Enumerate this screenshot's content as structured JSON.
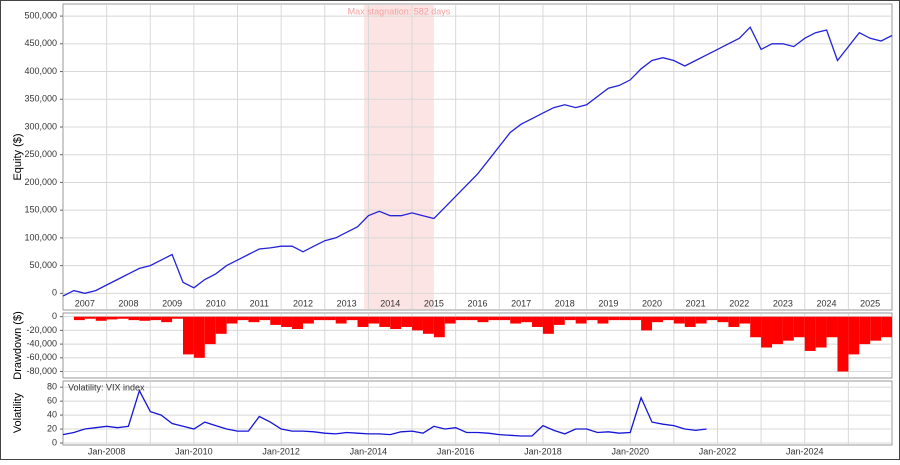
{
  "chart_data": [
    {
      "type": "line",
      "y_label": "Equity ($)",
      "annotation": "Max stagnation: 582 days",
      "shade": [
        2013.9,
        2015.5
      ],
      "shade_color": "#fde4e4",
      "annotation_color": "#f2a0a0",
      "grid": true,
      "xlim": [
        2007,
        2026
      ],
      "ylim": [
        -12000,
        520000
      ],
      "xticks": [
        {
          "value": 2007,
          "label": "2007"
        },
        {
          "value": 2008,
          "label": "2008"
        },
        {
          "value": 2009,
          "label": "2009"
        },
        {
          "value": 2010,
          "label": "2010"
        },
        {
          "value": 2011,
          "label": "2011"
        },
        {
          "value": 2012,
          "label": "2012"
        },
        {
          "value": 2013,
          "label": "2013"
        },
        {
          "value": 2014,
          "label": "2014"
        },
        {
          "value": 2015,
          "label": "2015"
        },
        {
          "value": 2016,
          "label": "2016"
        },
        {
          "value": 2017,
          "label": "2017"
        },
        {
          "value": 2018,
          "label": "2018"
        },
        {
          "value": 2019,
          "label": "2019"
        },
        {
          "value": 2020,
          "label": "2020"
        },
        {
          "value": 2021,
          "label": "2021"
        },
        {
          "value": 2022,
          "label": "2022"
        },
        {
          "value": 2023,
          "label": "2023"
        },
        {
          "value": 2024,
          "label": "2024"
        },
        {
          "value": 2025,
          "label": "2025"
        }
      ],
      "yticks": [
        0,
        {
          "value": 50000,
          "label": "50,000"
        },
        {
          "value": 100000,
          "label": "100,000"
        },
        {
          "value": 150000,
          "label": "150,000"
        },
        {
          "value": 200000,
          "label": "200,000"
        },
        {
          "value": 250000,
          "label": "250,000"
        },
        {
          "value": 300000,
          "label": "300,000"
        },
        {
          "value": 350000,
          "label": "350,000"
        },
        {
          "value": 400000,
          "label": "400,000"
        },
        {
          "value": 450000,
          "label": "450,000"
        },
        {
          "value": 500000,
          "label": "500,000"
        }
      ],
      "x": [
        2007,
        2007.25,
        2007.5,
        2007.75,
        2008,
        2008.25,
        2008.5,
        2008.75,
        2009,
        2009.25,
        2009.5,
        2009.75,
        2010,
        2010.25,
        2010.5,
        2010.75,
        2011,
        2011.25,
        2011.5,
        2011.75,
        2012,
        2012.25,
        2012.5,
        2012.75,
        2013,
        2013.25,
        2013.5,
        2013.75,
        2014,
        2014.25,
        2014.5,
        2014.75,
        2015,
        2015.25,
        2015.5,
        2015.75,
        2016,
        2016.25,
        2016.5,
        2016.75,
        2017,
        2017.25,
        2017.5,
        2017.75,
        2018,
        2018.25,
        2018.5,
        2018.75,
        2019,
        2019.25,
        2019.5,
        2019.75,
        2020,
        2020.25,
        2020.5,
        2020.75,
        2021,
        2021.25,
        2021.5,
        2021.75,
        2022,
        2022.25,
        2022.5,
        2022.75,
        2023,
        2023.25,
        2023.5,
        2023.75,
        2024,
        2024.25,
        2024.5,
        2024.75,
        2025,
        2025.25,
        2025.5,
        2025.75,
        2026
      ],
      "series": [
        {
          "color": "#2323d8",
          "values": [
            -5000,
            5000,
            0,
            5000,
            15000,
            25000,
            35000,
            45000,
            50000,
            60000,
            70000,
            20000,
            10000,
            25000,
            35000,
            50000,
            60000,
            70000,
            80000,
            82000,
            85000,
            85000,
            75000,
            85000,
            95000,
            100000,
            110000,
            120000,
            140000,
            148000,
            140000,
            140000,
            145000,
            140000,
            135000,
            155000,
            175000,
            195000,
            215000,
            240000,
            265000,
            290000,
            305000,
            315000,
            325000,
            335000,
            340000,
            335000,
            340000,
            355000,
            370000,
            375000,
            385000,
            405000,
            420000,
            425000,
            420000,
            410000,
            420000,
            430000,
            440000,
            450000,
            460000,
            480000,
            440000,
            450000,
            450000,
            445000,
            460000,
            470000,
            475000,
            420000,
            445000,
            470000,
            460000,
            455000,
            465000
          ]
        }
      ]
    },
    {
      "type": "bar",
      "y_label": "Drawdown ($)",
      "grid": true,
      "xlim": [
        2007,
        2026
      ],
      "ylim": [
        -88000,
        1000
      ],
      "yticks": [
        0,
        {
          "value": -20000,
          "label": "-20,000"
        },
        {
          "value": -40000,
          "label": "-40,000"
        },
        {
          "value": -60000,
          "label": "-60,000"
        },
        {
          "value": -80000,
          "label": "-80,000"
        }
      ],
      "x": [
        2007,
        2007.25,
        2007.5,
        2007.75,
        2008,
        2008.25,
        2008.5,
        2008.75,
        2009,
        2009.25,
        2009.5,
        2009.75,
        2010,
        2010.25,
        2010.5,
        2010.75,
        2011,
        2011.25,
        2011.5,
        2011.75,
        2012,
        2012.25,
        2012.5,
        2012.75,
        2013,
        2013.25,
        2013.5,
        2013.75,
        2014,
        2014.25,
        2014.5,
        2014.75,
        2015,
        2015.25,
        2015.5,
        2015.75,
        2016,
        2016.25,
        2016.5,
        2016.75,
        2017,
        2017.25,
        2017.5,
        2017.75,
        2018,
        2018.25,
        2018.5,
        2018.75,
        2019,
        2019.25,
        2019.5,
        2019.75,
        2020,
        2020.25,
        2020.5,
        2020.75,
        2021,
        2021.25,
        2021.5,
        2021.75,
        2022,
        2022.25,
        2022.5,
        2022.75,
        2023,
        2023.25,
        2023.5,
        2023.75,
        2024,
        2024.25,
        2024.5,
        2024.75,
        2025,
        2025.25,
        2025.5,
        2025.75,
        2026
      ],
      "series": [
        {
          "color": "#ff0000",
          "values": [
            0,
            -5000,
            -3000,
            -6000,
            -4000,
            -3000,
            -5000,
            -6000,
            -5000,
            -8000,
            -3000,
            -55000,
            -60000,
            -40000,
            -25000,
            -10000,
            -5000,
            -8000,
            -5000,
            -12000,
            -15000,
            -18000,
            -10000,
            -5000,
            -5000,
            -10000,
            -5000,
            -15000,
            -10000,
            -15000,
            -18000,
            -15000,
            -20000,
            -25000,
            -30000,
            -10000,
            -5000,
            -5000,
            -8000,
            -5000,
            -5000,
            -10000,
            -8000,
            -15000,
            -25000,
            -12000,
            -5000,
            -10000,
            -5000,
            -10000,
            -5000,
            -5000,
            -5000,
            -20000,
            -8000,
            -5000,
            -10000,
            -15000,
            -10000,
            -5000,
            -8000,
            -15000,
            -10000,
            -30000,
            -45000,
            -40000,
            -35000,
            -30000,
            -50000,
            -45000,
            -30000,
            -80000,
            -55000,
            -40000,
            -35000,
            -30000,
            -35000
          ]
        }
      ]
    },
    {
      "type": "line",
      "y_label": "Volatility",
      "annotation": "Volatility: VIX index",
      "grid": true,
      "xlim": [
        2007,
        2026
      ],
      "ylim": [
        0,
        86
      ],
      "xticks": [
        {
          "value": 2008,
          "label": "Jan-2008"
        },
        {
          "value": 2010,
          "label": "Jan-2010"
        },
        {
          "value": 2012,
          "label": "Jan-2012"
        },
        {
          "value": 2014,
          "label": "Jan-2014"
        },
        {
          "value": 2016,
          "label": "Jan-2016"
        },
        {
          "value": 2018,
          "label": "Jan-2018"
        },
        {
          "value": 2020,
          "label": "Jan-2020"
        },
        {
          "value": 2022,
          "label": "Jan-2022"
        },
        {
          "value": 2024,
          "label": "Jan-2024"
        }
      ],
      "yticks": [
        0,
        20,
        40,
        60,
        80
      ],
      "x": [
        2007,
        2007.25,
        2007.5,
        2007.75,
        2008,
        2008.25,
        2008.5,
        2008.75,
        2009,
        2009.25,
        2009.5,
        2009.75,
        2010,
        2010.25,
        2010.5,
        2010.75,
        2011,
        2011.25,
        2011.5,
        2011.75,
        2012,
        2012.25,
        2012.5,
        2012.75,
        2013,
        2013.25,
        2013.5,
        2013.75,
        2014,
        2014.25,
        2014.5,
        2014.75,
        2015,
        2015.25,
        2015.5,
        2015.75,
        2016,
        2016.25,
        2016.5,
        2016.75,
        2017,
        2017.25,
        2017.5,
        2017.75,
        2018,
        2018.25,
        2018.5,
        2018.75,
        2019,
        2019.25,
        2019.5,
        2019.75,
        2020,
        2020.25,
        2020.5,
        2020.75,
        2021,
        2021.25,
        2021.5,
        2021.75,
        2022,
        2022.25,
        2022.5,
        2022.75,
        2023,
        2023.25,
        2023.5,
        2023.75,
        2024,
        2024.25,
        2024.5,
        2024.75,
        2025,
        2025.25,
        2025.5,
        2025.75,
        2026
      ],
      "series": [
        {
          "color": "#1515d8",
          "values": [
            12,
            15,
            20,
            22,
            24,
            22,
            24,
            75,
            45,
            40,
            28,
            24,
            20,
            30,
            25,
            20,
            17,
            17,
            38,
            30,
            20,
            17,
            17,
            16,
            14,
            13,
            15,
            14,
            13,
            13,
            12,
            16,
            17,
            14,
            24,
            20,
            22,
            15,
            15,
            14,
            12,
            11,
            10,
            10,
            25,
            18,
            13,
            20,
            20,
            15,
            16,
            14,
            15,
            65,
            30,
            27,
            25,
            20,
            18,
            20,
            null,
            null,
            null,
            null,
            null,
            null,
            null,
            null,
            null,
            null,
            null,
            null,
            null,
            null,
            null,
            null,
            null
          ]
        }
      ]
    }
  ]
}
